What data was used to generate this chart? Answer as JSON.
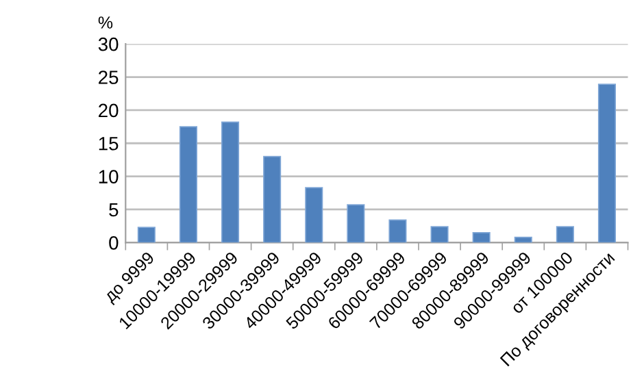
{
  "chart_data": {
    "type": "bar",
    "ylabel": "%",
    "categories": [
      "до 9999",
      "10000-19999",
      "20000-29999",
      "30000-39999",
      "40000-49999",
      "50000-59999",
      "60000-69999",
      "70000-69999",
      "80000-89999",
      "90000-99999",
      "от 100000",
      "По договоренности"
    ],
    "values": [
      2.3,
      17.5,
      18.2,
      13.0,
      8.3,
      5.7,
      3.4,
      2.4,
      1.5,
      0.8,
      2.4,
      23.9
    ],
    "color": "#4f81bd",
    "ylim": [
      0,
      30
    ],
    "yticks": [
      0,
      5,
      10,
      15,
      20,
      25,
      30
    ],
    "grid": "y"
  }
}
